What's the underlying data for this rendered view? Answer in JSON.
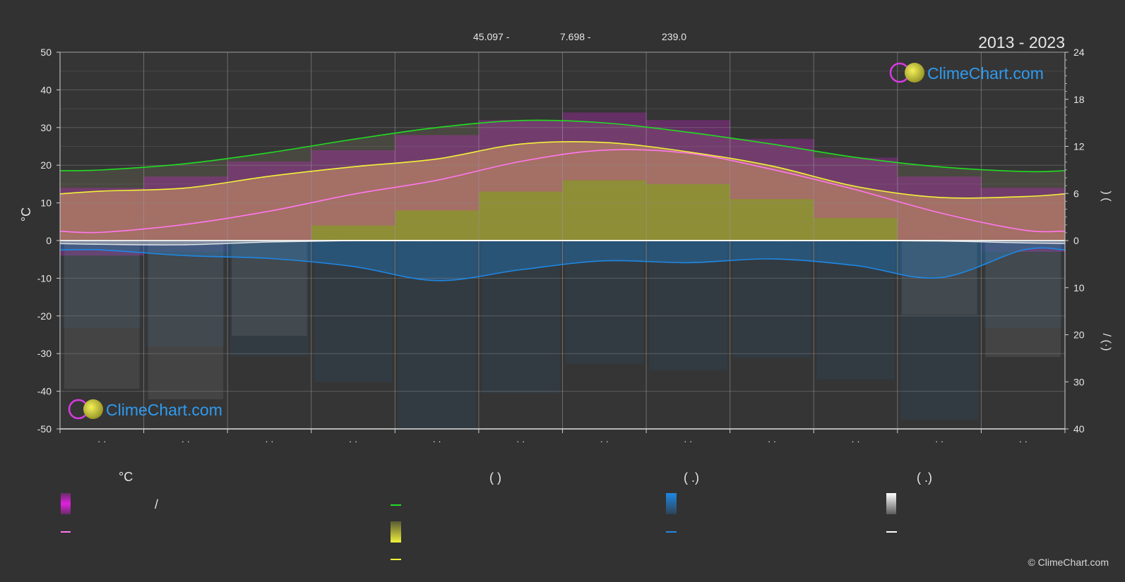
{
  "header": {
    "coord_lat": "45.097 -",
    "coord_lon": "7.698 -",
    "elevation": "239.0",
    "period": "2013 - 2023"
  },
  "brand": {
    "name": "ClimeChart.com",
    "copyright": "© ClimeChart.com"
  },
  "axes": {
    "left_unit": "°C",
    "left_ticks": [
      "50",
      "40",
      "30",
      "20",
      "10",
      "0",
      "-10",
      "-20",
      "-30",
      "-40",
      "-50"
    ],
    "right_ticks_top": [
      "24",
      "18",
      "12",
      "6",
      "0"
    ],
    "right_ticks_bottom": [
      "10",
      "20",
      "30",
      "40"
    ],
    "right_label_top": ")    (",
    "right_label_bottom": "/ (·)",
    "month_labels": [
      "· ·",
      "· ·",
      "· ·",
      "· ·",
      "· ·",
      "· ·",
      "· ·",
      "· ·",
      "· ·",
      "· ·",
      "· ·",
      "· ·"
    ]
  },
  "legend": {
    "temp_header": "°C",
    "sun_header": "(          )",
    "rain_header": "(   .)",
    "snow_header": "(   .)",
    "temp_range_text": "/"
  },
  "colors": {
    "background": "#323232",
    "temp_range": "#e020e0",
    "temp_mean": "#ff77ee",
    "daylight": "#22dd22",
    "sunshine": "#dcdc3c",
    "sunshine_line": "#f2f23a",
    "rain": "#1e88e5",
    "snow": "#eeeeee",
    "brand_blue": "#2196f3"
  },
  "chart_data": {
    "type": "area",
    "x": [
      "Jan",
      "Feb",
      "Mar",
      "Apr",
      "May",
      "Jun",
      "Jul",
      "Aug",
      "Sep",
      "Oct",
      "Nov",
      "Dec"
    ],
    "ylim_left": [
      -50,
      50
    ],
    "ylim_right_top": [
      0,
      24
    ],
    "ylim_right_bottom": [
      0,
      40
    ],
    "grid": true,
    "series": [
      {
        "values": [
          2.2,
          4.3,
          7.8,
          12.3,
          16.0,
          21.0,
          24.0,
          23.2,
          18.9,
          13.5,
          7.4,
          2.8
        ]
      },
      {
        "values": [
          9.0,
          9.8,
          11.2,
          12.9,
          14.4,
          15.3,
          15.0,
          13.8,
          12.3,
          10.6,
          9.4,
          8.8
        ]
      },
      {
        "values": [
          6.3,
          6.7,
          8.2,
          9.4,
          10.4,
          12.3,
          12.5,
          11.3,
          9.5,
          6.9,
          5.5,
          5.6
        ]
      },
      {
        "values": [
          2.0,
          3.2,
          3.8,
          5.5,
          8.5,
          6.2,
          4.3,
          4.7,
          3.9,
          5.3,
          7.9,
          2.0
        ]
      },
      {
        "values": [
          0.8,
          0.9,
          0.3,
          0.0,
          0.0,
          0.0,
          0.0,
          0.0,
          0.0,
          0.0,
          0.1,
          0.5
        ]
      }
    ],
    "temp_range_bands": [
      {
        "min": -4,
        "max": 14
      },
      {
        "min": -3,
        "max": 17
      },
      {
        "min": 0,
        "max": 21
      },
      {
        "min": 4,
        "max": 24
      },
      {
        "min": 8,
        "max": 28
      },
      {
        "min": 13,
        "max": 32
      },
      {
        "min": 16,
        "max": 34
      },
      {
        "min": 15,
        "max": 32
      },
      {
        "min": 11,
        "max": 27
      },
      {
        "min": 6,
        "max": 22
      },
      {
        "min": 0,
        "max": 17
      },
      {
        "min": -3,
        "max": 14
      }
    ]
  }
}
